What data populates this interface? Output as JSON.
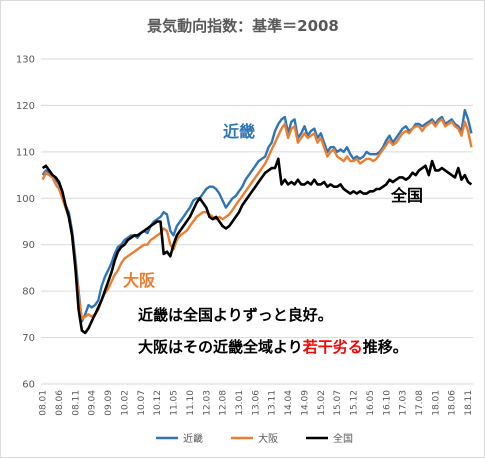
{
  "chart_data": {
    "type": "line",
    "title": "景気動向指数：基準＝2008",
    "xlabel": "",
    "ylabel": "",
    "ylim": [
      60,
      130
    ],
    "y_ticks": [
      "60",
      "70",
      "80",
      "90",
      "100",
      "110",
      "120",
      "130"
    ],
    "x_ticks": [
      "08.01",
      "08.06",
      "08.11",
      "09.04",
      "09.09",
      "10.02",
      "10.07",
      "10.12",
      "11.05",
      "11.10",
      "12.03",
      "12.08",
      "13.01",
      "13.06",
      "13.11",
      "14.04",
      "14.09",
      "15.02",
      "15.07",
      "15.12",
      "16.05",
      "16.10",
      "17.03",
      "17.08",
      "18.01",
      "18.06",
      "18.11"
    ],
    "grid": true,
    "legend_position": "bottom",
    "x": [
      "08.01",
      "08.02",
      "08.03",
      "08.04",
      "08.05",
      "08.06",
      "08.07",
      "08.08",
      "08.09",
      "08.10",
      "08.11",
      "08.12",
      "09.01",
      "09.02",
      "09.03",
      "09.04",
      "09.05",
      "09.06",
      "09.07",
      "09.08",
      "09.09",
      "09.10",
      "09.11",
      "09.12",
      "10.01",
      "10.02",
      "10.03",
      "10.04",
      "10.05",
      "10.06",
      "10.07",
      "10.08",
      "10.09",
      "10.10",
      "10.11",
      "10.12",
      "11.01",
      "11.02",
      "11.03",
      "11.04",
      "11.05",
      "11.06",
      "11.07",
      "11.08",
      "11.09",
      "11.10",
      "11.11",
      "11.12",
      "12.01",
      "12.02",
      "12.03",
      "12.04",
      "12.05",
      "12.06",
      "12.07",
      "12.08",
      "12.09",
      "12.10",
      "12.11",
      "12.12",
      "13.01",
      "13.02",
      "13.03",
      "13.04",
      "13.05",
      "13.06",
      "13.07",
      "13.08",
      "13.09",
      "13.10",
      "13.11",
      "13.12",
      "14.01",
      "14.02",
      "14.03",
      "14.04",
      "14.05",
      "14.06",
      "14.07",
      "14.08",
      "14.09",
      "14.10",
      "14.11",
      "14.12",
      "15.01",
      "15.02",
      "15.03",
      "15.04",
      "15.05",
      "15.06",
      "15.07",
      "15.08",
      "15.09",
      "15.10",
      "15.11",
      "15.12",
      "16.01",
      "16.02",
      "16.03",
      "16.04",
      "16.05",
      "16.06",
      "16.07",
      "16.08",
      "16.09",
      "16.10",
      "16.11",
      "16.12",
      "17.01",
      "17.02",
      "17.03",
      "17.04",
      "17.05",
      "17.06",
      "17.07",
      "17.08",
      "17.09",
      "17.10",
      "17.11",
      "17.12",
      "18.01",
      "18.02",
      "18.03",
      "18.04",
      "18.05",
      "18.06",
      "18.07",
      "18.08",
      "18.09",
      "18.10",
      "18.11",
      "18.12"
    ],
    "series": [
      {
        "name": "近畿",
        "color": "#2e75b6",
        "values": [
          105,
          106,
          105.5,
          105,
          104,
          103,
          101,
          98.5,
          97,
          93,
          87,
          80,
          73.5,
          75,
          77,
          76.5,
          77,
          78,
          81,
          83,
          84.5,
          86,
          88,
          89.5,
          90,
          91,
          91.5,
          92,
          92,
          91.5,
          92.5,
          93,
          92.5,
          94,
          95,
          95.5,
          96,
          97,
          96.5,
          93,
          92,
          94,
          95,
          96,
          97,
          98,
          99.5,
          100,
          100,
          101,
          102,
          102.5,
          102.5,
          102,
          101,
          99.5,
          98,
          99,
          100,
          100.5,
          101.5,
          102.5,
          104,
          105,
          106,
          107,
          108,
          108.5,
          109,
          111,
          112,
          114.5,
          116,
          117,
          117.5,
          114,
          116.5,
          117,
          113,
          114,
          115.5,
          113.5,
          114.5,
          115,
          113,
          114,
          112,
          110,
          111,
          111,
          110,
          110.5,
          110,
          111,
          109.5,
          108.5,
          109,
          108.5,
          109,
          110,
          109.5,
          109.5,
          109.5,
          110,
          111,
          112.5,
          113.5,
          112,
          113,
          114,
          115,
          115.5,
          114.5,
          115,
          116,
          116,
          115.5,
          116,
          116.5,
          117,
          116,
          117,
          117.5,
          116,
          116.5,
          117,
          116,
          115.5,
          114.5,
          119,
          117,
          114
        ]
      },
      {
        "name": "大阪",
        "color": "#ed7d31",
        "values": [
          104,
          105.5,
          105,
          104.5,
          103,
          102,
          100,
          98,
          96,
          92,
          86,
          79,
          74,
          74.5,
          75,
          74.5,
          75,
          76,
          78,
          79.5,
          80.5,
          82,
          83.5,
          84.5,
          86,
          87,
          87.5,
          88,
          88.5,
          89,
          89.5,
          90,
          90,
          91,
          91.5,
          92,
          92.5,
          93.5,
          93,
          90,
          89,
          91,
          92,
          92.5,
          93,
          94,
          95,
          96,
          96.5,
          97,
          97,
          96.5,
          96,
          95.5,
          96,
          95.5,
          96,
          96.5,
          97.5,
          98.5,
          99.5,
          100.5,
          101.5,
          102.5,
          103.5,
          104.5,
          105.5,
          106.5,
          107.5,
          109,
          110.5,
          112,
          113.5,
          115,
          116,
          113,
          115,
          115.5,
          112,
          113,
          114,
          113,
          113.5,
          114,
          112,
          113,
          111,
          109,
          110,
          110.5,
          109,
          108.5,
          108,
          109,
          108,
          108,
          108.5,
          107.5,
          108,
          108.5,
          108.5,
          108,
          108.5,
          109.5,
          110.5,
          111.5,
          112.5,
          111.5,
          112,
          113,
          114,
          114.5,
          114,
          115,
          115.5,
          115.5,
          114.5,
          115.5,
          116,
          116.5,
          115.5,
          116.5,
          117,
          115.5,
          116,
          116.5,
          115.5,
          115,
          113.5,
          116.5,
          114.5,
          111
        ]
      },
      {
        "name": "全国",
        "color": "#000000",
        "values": [
          106.5,
          107,
          106,
          105,
          104.5,
          103.5,
          101.5,
          98.5,
          96,
          92,
          85,
          76,
          71.5,
          71,
          72,
          73.5,
          75,
          76.5,
          78,
          80,
          82,
          84,
          86.5,
          88.5,
          89.5,
          90,
          91,
          91.5,
          92,
          92,
          92.5,
          93,
          93.5,
          94,
          94.5,
          95,
          95,
          88,
          88.5,
          87.5,
          90,
          92,
          93,
          94,
          95,
          96,
          97.5,
          99,
          100,
          99,
          98,
          96,
          95.5,
          96,
          95,
          94,
          93.5,
          94,
          95,
          96,
          97,
          98.5,
          99.5,
          100.5,
          101.5,
          102.5,
          103.5,
          104.5,
          105.5,
          106,
          106.5,
          106.5,
          108.5,
          103,
          104,
          103,
          103.5,
          103,
          104,
          103,
          103,
          103.5,
          103,
          104,
          103,
          103,
          103.5,
          102.5,
          103,
          102.5,
          102.5,
          103,
          102,
          101.5,
          101,
          101.5,
          101,
          101.5,
          101,
          101,
          101.5,
          101.5,
          102,
          102,
          102.5,
          103,
          104,
          103.5,
          104,
          104.5,
          104.5,
          104,
          104.5,
          105.5,
          105,
          106,
          106.5,
          107,
          105,
          108,
          106,
          106,
          106.5,
          106,
          105.5,
          105,
          104.5,
          106.5,
          104,
          105,
          103.5,
          103
        ]
      }
    ]
  },
  "annotations": {
    "kinki_label": "近畿",
    "osaka_label": "大阪",
    "zenkoku_label": "全国",
    "note_line1": "近畿は全国よりずっと良好。",
    "note_line2_part1": "大阪はその近畿全域より",
    "note_line2_highlight": "若干劣る",
    "note_line2_part2": "推移。",
    "highlight_color": "#ff0000"
  },
  "legend": {
    "items": [
      {
        "label": "近畿",
        "color": "#2e75b6"
      },
      {
        "label": "大阪",
        "color": "#ed7d31"
      },
      {
        "label": "全国",
        "color": "#000000"
      }
    ]
  }
}
